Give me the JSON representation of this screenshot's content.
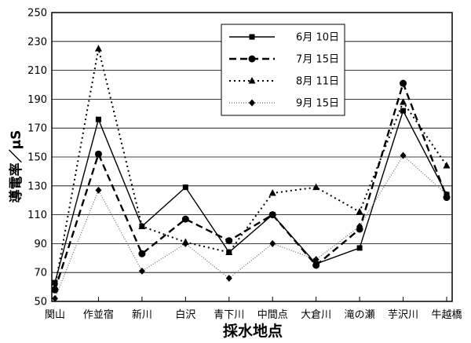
{
  "chart_data": {
    "type": "line",
    "xlabel": "採水地点",
    "ylabel": "導電率／μS",
    "ylim": [
      50,
      250
    ],
    "yticks": [
      50,
      70,
      90,
      110,
      130,
      150,
      170,
      190,
      210,
      230,
      250
    ],
    "grid": "horizontal",
    "legend_position": "top-right",
    "categories": [
      "関山",
      "作並宿",
      "新川",
      "白沢",
      "青下川",
      "中間点",
      "大倉川",
      "滝の瀬",
      "芋沢川",
      "牛越橋"
    ],
    "series": [
      {
        "name": "6月  10日",
        "style": "solid",
        "marker": "square",
        "values": [
          63,
          176,
          102,
          129,
          84,
          110,
          76,
          87,
          182,
          124
        ]
      },
      {
        "name": "7月  15日",
        "style": "dashed",
        "marker": "circle",
        "values": [
          58,
          152,
          83,
          107,
          92,
          110,
          75,
          100,
          201,
          122
        ]
      },
      {
        "name": "8月  11日",
        "style": "dotted",
        "marker": "triangle",
        "values": [
          60,
          225,
          102,
          91,
          84,
          125,
          129,
          112,
          188,
          144
        ]
      },
      {
        "name": "9月  15日",
        "style": "fine-dotted",
        "marker": "diamond",
        "values": [
          52,
          127,
          71,
          90,
          66,
          90,
          79,
          102,
          151,
          124
        ]
      }
    ]
  }
}
